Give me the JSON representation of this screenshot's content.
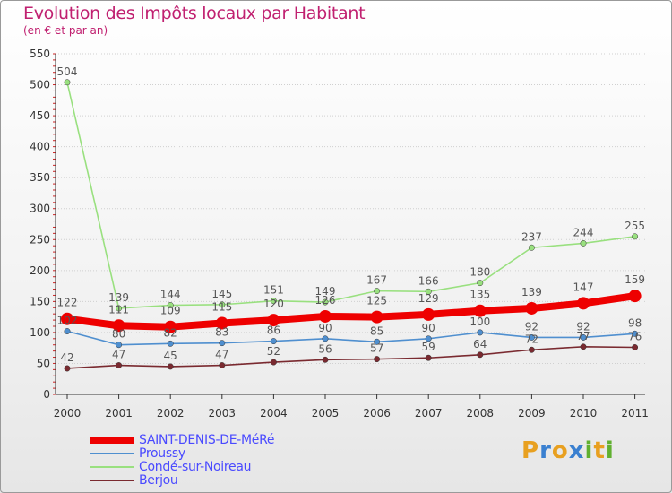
{
  "header": {
    "title": "Evolution des Impôts locaux par Habitant",
    "subtitle": "(en € et par an)"
  },
  "logo": {
    "letters": [
      "P",
      "r",
      "o",
      "x",
      "i",
      "t",
      "i"
    ],
    "colors": [
      "#e8a020",
      "#3a80d0",
      "#e8a020",
      "#3a80d0",
      "#60b030",
      "#e8a020",
      "#60b030"
    ]
  },
  "chart_data": {
    "type": "line",
    "title": "Evolution des Impôts locaux par Habitant",
    "subtitle": "(en € et par an)",
    "xlabel": "",
    "ylabel": "",
    "ylim": [
      0,
      550
    ],
    "yticks": [
      "0",
      "50",
      "100",
      "150",
      "200",
      "250",
      "300",
      "350",
      "400",
      "450",
      "500",
      "550"
    ],
    "categories": [
      "2000",
      "2001",
      "2002",
      "2003",
      "2004",
      "2005",
      "2006",
      "2007",
      "2008",
      "2009",
      "2010",
      "2011"
    ],
    "legend_position": "bottom-left",
    "series": [
      {
        "name": "SAINT-DENIS-DE-MéRé",
        "color": "#ee0000",
        "values": [
          122,
          111,
          109,
          115,
          120,
          126,
          125,
          129,
          135,
          139,
          147,
          159
        ],
        "labels": [
          "122",
          "111",
          "109",
          "115",
          "120",
          "126",
          "125",
          "129",
          "135",
          "139",
          "147",
          "159"
        ]
      },
      {
        "name": "Proussy",
        "color": "#4f8fcf",
        "values": [
          102,
          80,
          82,
          83,
          86,
          90,
          85,
          90,
          100,
          92,
          92,
          98
        ],
        "labels": [
          "102",
          "80",
          "82",
          "83",
          "86",
          "90",
          "85",
          "90",
          "100",
          "92",
          "92",
          "98"
        ]
      },
      {
        "name": "Condé-sur-Noireau",
        "color": "#99e07f",
        "values": [
          504,
          139,
          144,
          145,
          151,
          149,
          167,
          166,
          180,
          237,
          244,
          255
        ],
        "labels": [
          "504",
          "139",
          "144",
          "145",
          "151",
          "149",
          "167",
          "166",
          "180",
          "237",
          "244",
          "255"
        ]
      },
      {
        "name": "Berjou",
        "color": "#7a2a30",
        "values": [
          42,
          47,
          45,
          47,
          52,
          56,
          57,
          59,
          64,
          72,
          77,
          76
        ],
        "labels": [
          "42",
          "47",
          "45",
          "47",
          "52",
          "56",
          "57",
          "59",
          "64",
          "72",
          "77",
          "76"
        ]
      }
    ]
  }
}
